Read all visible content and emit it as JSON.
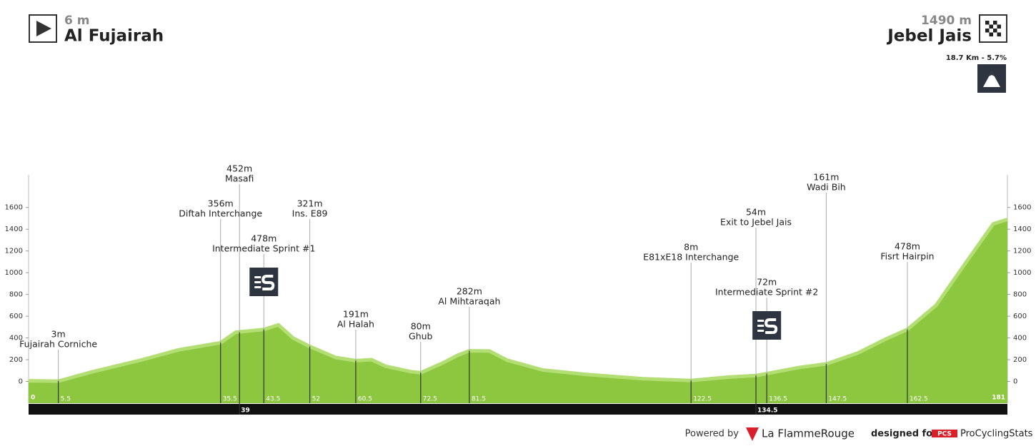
{
  "chart_data": {
    "type": "area",
    "start": {
      "elevation_label": "6 m",
      "name": "Al Fujairah"
    },
    "finish": {
      "elevation_label": "1490 m",
      "name": "Jebel Jais"
    },
    "climb": "18.7 Km - 5.7%",
    "xlim": [
      0,
      181
    ],
    "ylim": [
      -200,
      1900
    ],
    "yticks": [
      0,
      200,
      400,
      600,
      800,
      1000,
      1200,
      1400,
      1600
    ],
    "color": "#8dc63f",
    "x": [
      0,
      5.5,
      11.9,
      21.1,
      27.7,
      35.5,
      38.3,
      43.5,
      46.2,
      48.9,
      52,
      56.8,
      60.5,
      63.4,
      66,
      70.7,
      72.5,
      76.6,
      79.3,
      81.5,
      85.2,
      88.5,
      95.1,
      103,
      113.6,
      122.5,
      129.5,
      134.5,
      136.5,
      142.7,
      147.5,
      153.3,
      158.5,
      162.5,
      167.8,
      173,
      178.4,
      181
    ],
    "values": [
      6,
      3,
      90,
      200,
      290,
      356,
      452,
      478,
      520,
      400,
      321,
      220,
      191,
      200,
      140,
      90,
      80,
      170,
      240,
      282,
      280,
      195,
      105,
      65,
      25,
      8,
      40,
      54,
      72,
      130,
      161,
      260,
      390,
      478,
      700,
      1070,
      1450,
      1490
    ],
    "landmarks": [
      {
        "km": 5.5,
        "elevation": 3,
        "elevation_label": "3m",
        "name": "Fujairah Corniche"
      },
      {
        "km": 35.5,
        "elevation": 356,
        "elevation_label": "356m",
        "name": "Diftah Interchange"
      },
      {
        "km": 39,
        "elevation": 452,
        "elevation_label": "452m",
        "name": "Masafi"
      },
      {
        "km": 43.5,
        "elevation": 478,
        "elevation_label": "478m",
        "name": "Intermediate Sprint #1"
      },
      {
        "km": 52,
        "elevation": 321,
        "elevation_label": "321m",
        "name": "Ins. E89"
      },
      {
        "km": 60.5,
        "elevation": 191,
        "elevation_label": "191m",
        "name": "Al Halah"
      },
      {
        "km": 72.5,
        "elevation": 80,
        "elevation_label": "80m",
        "name": "Ghub"
      },
      {
        "km": 81.5,
        "elevation": 282,
        "elevation_label": "282m",
        "name": "Al Mihtaraqah"
      },
      {
        "km": 122.5,
        "elevation": 8,
        "elevation_label": "8m",
        "name": "E81xE18 Interchange"
      },
      {
        "km": 134.5,
        "elevation": 54,
        "elevation_label": "54m",
        "name": "Exit to Jebel Jais"
      },
      {
        "km": 136.5,
        "elevation": 72,
        "elevation_label": "72m",
        "name": "Intermediate Sprint #2"
      },
      {
        "km": 147.5,
        "elevation": 161,
        "elevation_label": "161m",
        "name": "Wadi Bih"
      },
      {
        "km": 162.5,
        "elevation": 478,
        "elevation_label": "478m",
        "name": "Fisrt Hairpin"
      }
    ],
    "footer": {
      "powered": "Powered by",
      "brand": "La FlammeRouge",
      "designed": "designed for",
      "pcs": "PCS",
      "site": "ProCyclingStats"
    }
  }
}
